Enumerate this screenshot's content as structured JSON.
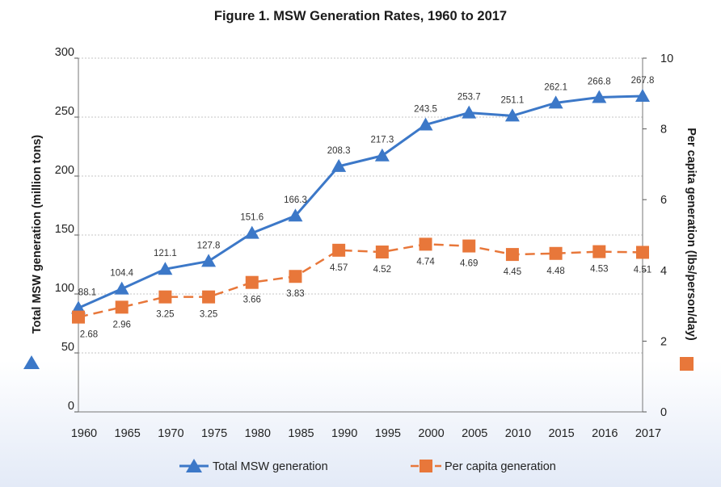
{
  "chart_data": {
    "type": "line",
    "title": "Figure 1. MSW Generation Rates, 1960 to 2017",
    "xlabel": "",
    "categories": [
      "1960",
      "1965",
      "1970",
      "1975",
      "1980",
      "1985",
      "1990",
      "1995",
      "2000",
      "2005",
      "2010",
      "2015",
      "2016",
      "2017"
    ],
    "y_left": {
      "label": "Total MSW generation (million tons)",
      "lim": [
        0,
        300
      ],
      "ticks": [
        "0",
        "50",
        "100",
        "150",
        "200",
        "250",
        "300"
      ]
    },
    "y_right": {
      "label": "Per capita generation (lbs/person/day)",
      "lim": [
        0,
        10
      ],
      "ticks": [
        "0",
        "2",
        "4",
        "6",
        "8",
        "10"
      ]
    },
    "grid": true,
    "legend_position": "bottom",
    "series": [
      {
        "name": "Total MSW generation",
        "axis": "left",
        "marker": "triangle",
        "color": "#3c78c8",
        "values": [
          88.1,
          104.4,
          121.1,
          127.8,
          151.6,
          166.3,
          208.3,
          217.3,
          243.5,
          253.7,
          251.1,
          262.1,
          266.8,
          267.8
        ],
        "labels": [
          "88.1",
          "104.4",
          "121.1",
          "127.8",
          "151.6",
          "166.3",
          "208.3",
          "217.3",
          "243.5",
          "253.7",
          "251.1",
          "262.1",
          "266.8",
          "267.8"
        ]
      },
      {
        "name": "Per capita generation",
        "axis": "right",
        "marker": "square",
        "color": "#e8773a",
        "values": [
          2.68,
          2.96,
          3.25,
          3.25,
          3.66,
          3.83,
          4.57,
          4.52,
          4.74,
          4.69,
          4.45,
          4.48,
          4.53,
          4.51
        ],
        "labels": [
          "2.68",
          "2.96",
          "3.25",
          "3.25",
          "3.66",
          "3.83",
          "4.57",
          "4.52",
          "4.74",
          "4.69",
          "4.45",
          "4.48",
          "4.53",
          "4.51"
        ]
      }
    ]
  }
}
